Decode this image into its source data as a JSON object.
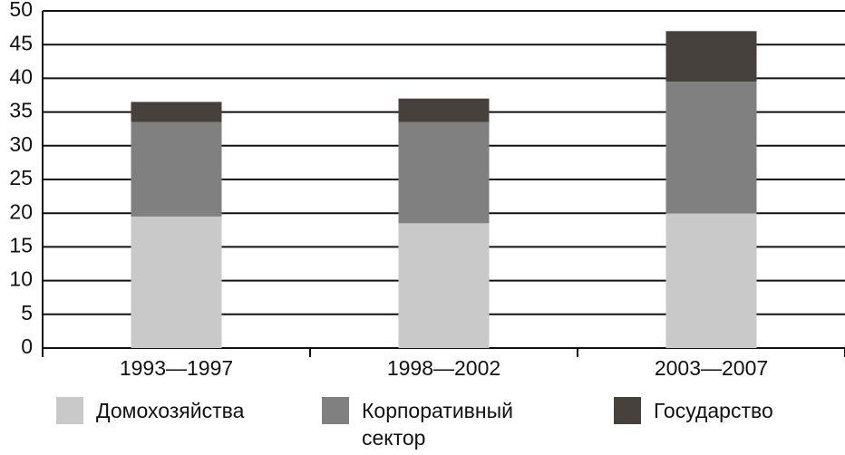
{
  "chart_data": {
    "type": "stacked_bar",
    "categories": [
      "1993—1997",
      "1998—2002",
      "2003—2007"
    ],
    "series": [
      {
        "name": "Домохозяйства",
        "color": "#c9c9c9",
        "values": [
          19.5,
          18.5,
          20
        ]
      },
      {
        "name": "Корпоративный сектор",
        "color": "#808080",
        "values": [
          14,
          15,
          19.5
        ]
      },
      {
        "name": "Государство",
        "color": "#46413d",
        "values": [
          3,
          3.5,
          7.5
        ]
      }
    ],
    "ylim": [
      0,
      50
    ],
    "yticks": [
      0,
      5,
      10,
      15,
      20,
      25,
      30,
      35,
      40,
      45,
      50
    ],
    "grid": true
  }
}
